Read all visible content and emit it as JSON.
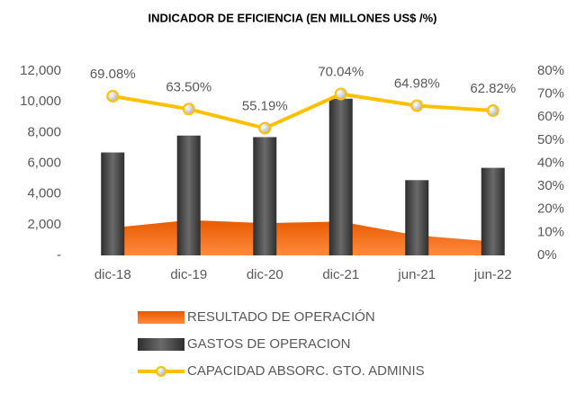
{
  "chart_data": {
    "type": "combo",
    "title": "INDICADOR DE EFICIENCIA (EN MILLONES US$ /%)",
    "categories": [
      "dic-18",
      "dic-19",
      "dic-20",
      "dic-21",
      "jun-21",
      "jun-22"
    ],
    "series": [
      {
        "name": "RESULTADO DE OPERACIÓN",
        "type": "area",
        "color": "#f26a10",
        "values": [
          1800,
          2300,
          2100,
          2200,
          1300,
          900
        ]
      },
      {
        "name": "GASTOS DE OPERACION",
        "type": "bar",
        "color": "#4a4a4a",
        "values": [
          6700,
          7800,
          7700,
          10200,
          4900,
          5700
        ]
      },
      {
        "name": "CAPACIDAD ABSORC. GTO. ADMINIS",
        "type": "line",
        "axis": "y2",
        "color": "#ffc000",
        "values": [
          69.08,
          63.5,
          55.19,
          70.04,
          64.98,
          62.82
        ],
        "value_labels": [
          "69.08%",
          "63.50%",
          "55.19%",
          "70.04%",
          "64.98%",
          "62.82%"
        ]
      }
    ],
    "ylim": [
      0,
      12000
    ],
    "yticks": [
      {
        "value": 0,
        "label": "-"
      },
      {
        "value": 2000,
        "label": "2,000"
      },
      {
        "value": 4000,
        "label": "4,000"
      },
      {
        "value": 6000,
        "label": "6,000"
      },
      {
        "value": 8000,
        "label": "8,000"
      },
      {
        "value": 10000,
        "label": "10,000"
      },
      {
        "value": 12000,
        "label": "12,000"
      }
    ],
    "y2lim": [
      0,
      80
    ],
    "y2ticks": [
      {
        "value": 0,
        "label": "0%"
      },
      {
        "value": 10,
        "label": "10%"
      },
      {
        "value": 20,
        "label": "20%"
      },
      {
        "value": 30,
        "label": "30%"
      },
      {
        "value": 40,
        "label": "40%"
      },
      {
        "value": 50,
        "label": "50%"
      },
      {
        "value": 60,
        "label": "60%"
      },
      {
        "value": 70,
        "label": "70%"
      },
      {
        "value": 80,
        "label": "80%"
      }
    ],
    "grid": false,
    "legend": "bottom"
  }
}
